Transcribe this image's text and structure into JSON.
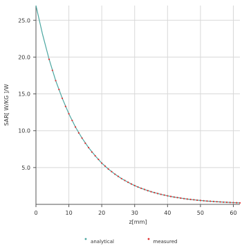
{
  "chart_data": {
    "type": "line",
    "title": "",
    "xlabel": "z[mm]",
    "ylabel": "SAR[ W/KG ]/W",
    "xlim": [
      0,
      62
    ],
    "ylim": [
      0,
      27
    ],
    "x_ticks": [
      "0",
      "10",
      "20",
      "30",
      "40",
      "50",
      "60"
    ],
    "y_ticks": [
      "5.0",
      "10.0",
      "15.0",
      "20.0",
      "25.0"
    ],
    "grid": true,
    "legend_position": "bottom",
    "series": [
      {
        "name": "analytical",
        "color": "#4aa6a0",
        "x": [
          0,
          2,
          4,
          6,
          8,
          10,
          12,
          14,
          16,
          18,
          20,
          22,
          24,
          26,
          28,
          30,
          32,
          34,
          36,
          38,
          40,
          42,
          44,
          46,
          48,
          50,
          52,
          54,
          56,
          58,
          60,
          62
        ],
        "y": [
          27.0,
          23.1,
          19.7,
          16.8,
          14.4,
          12.3,
          10.5,
          9.0,
          7.7,
          6.6,
          5.6,
          4.8,
          4.1,
          3.5,
          3.0,
          2.55,
          2.18,
          1.86,
          1.59,
          1.36,
          1.16,
          0.99,
          0.85,
          0.72,
          0.62,
          0.53,
          0.45,
          0.39,
          0.33,
          0.28,
          0.24,
          0.2
        ]
      },
      {
        "name": "measured",
        "color": "#e03030",
        "x": [
          4,
          5,
          6,
          7,
          8,
          9,
          10,
          11,
          12,
          13,
          14,
          15,
          16,
          17,
          18,
          19,
          20,
          21,
          22,
          23,
          24,
          25,
          26,
          27,
          28,
          29,
          30,
          31,
          32,
          33,
          34,
          35,
          36,
          37,
          38,
          39,
          40,
          41,
          42,
          43,
          44,
          45,
          46,
          47,
          48,
          49,
          50,
          51,
          52,
          53,
          54,
          55,
          56,
          57,
          58,
          59,
          60,
          61,
          62
        ],
        "y": [
          19.7,
          18.2,
          16.8,
          15.6,
          14.4,
          13.3,
          12.3,
          11.4,
          10.5,
          9.7,
          9.0,
          8.3,
          7.7,
          7.1,
          6.6,
          6.1,
          5.6,
          5.2,
          4.8,
          4.45,
          4.1,
          3.8,
          3.5,
          3.25,
          3.0,
          2.76,
          2.55,
          2.36,
          2.18,
          2.02,
          1.86,
          1.72,
          1.59,
          1.47,
          1.36,
          1.26,
          1.16,
          1.07,
          0.99,
          0.92,
          0.85,
          0.78,
          0.72,
          0.67,
          0.62,
          0.57,
          0.53,
          0.49,
          0.45,
          0.42,
          0.39,
          0.36,
          0.33,
          0.3,
          0.28,
          0.26,
          0.24,
          0.22,
          0.2
        ]
      }
    ]
  }
}
